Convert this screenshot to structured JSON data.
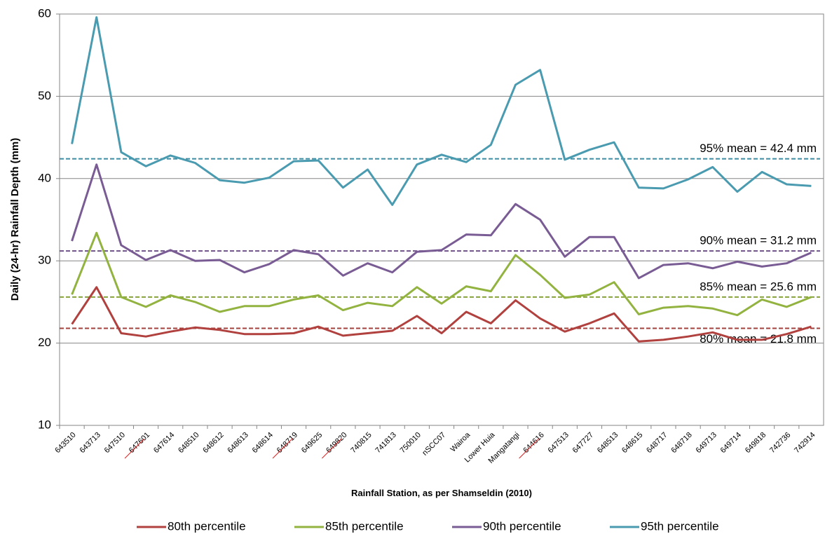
{
  "chart_data": {
    "type": "line",
    "y_label": "Daily (24-hr) Rainfall Depth (mm)",
    "x_label": "Rainfall Station, as per Shamseldin (2010)",
    "categories": [
      "643510",
      "643713",
      "647510",
      "647601",
      "647614",
      "648510",
      "648612",
      "648613",
      "648614",
      "648719",
      "649625",
      "649820",
      "740815",
      "741813",
      "750010",
      "nSCC07",
      "Wairoa",
      "Lower Huia",
      "Mangatangi",
      "644616",
      "647513",
      "647727",
      "648513",
      "648615",
      "648717",
      "648718",
      "649713",
      "649714",
      "649818",
      "742736",
      "742914"
    ],
    "struck_categories": [
      3,
      9,
      11,
      19
    ],
    "ylim": [
      10,
      60
    ],
    "yticks": [
      10,
      20,
      30,
      40,
      50,
      60
    ],
    "grid": true,
    "legend": "bottom",
    "series": [
      {
        "name": "80th percentile",
        "color": "#b0413e",
        "values": [
          22.3,
          26.8,
          21.2,
          20.8,
          21.4,
          21.9,
          21.6,
          21.1,
          21.1,
          21.2,
          22.0,
          20.9,
          21.2,
          21.5,
          23.3,
          21.2,
          23.8,
          22.4,
          25.2,
          23.0,
          21.4,
          22.4,
          23.6,
          20.2,
          20.4,
          20.8,
          21.3,
          20.4,
          20.4,
          21.1,
          22.0
        ]
      },
      {
        "name": "85th percentile",
        "color": "#93b341",
        "values": [
          25.9,
          33.4,
          25.6,
          24.4,
          25.8,
          25.0,
          23.8,
          24.5,
          24.5,
          25.3,
          25.8,
          24.0,
          24.9,
          24.5,
          26.8,
          24.8,
          26.9,
          26.3,
          30.7,
          28.3,
          25.5,
          25.9,
          27.4,
          23.5,
          24.3,
          24.5,
          24.2,
          23.4,
          25.3,
          24.4,
          25.6
        ]
      },
      {
        "name": "90th percentile",
        "color": "#7a5c94",
        "values": [
          32.4,
          41.7,
          31.9,
          30.1,
          31.3,
          30.0,
          30.1,
          28.6,
          29.6,
          31.3,
          30.8,
          28.2,
          29.7,
          28.6,
          31.1,
          31.3,
          33.2,
          33.1,
          36.9,
          35.0,
          30.5,
          32.9,
          32.9,
          27.9,
          29.5,
          29.7,
          29.1,
          29.9,
          29.3,
          29.7,
          31.0
        ]
      },
      {
        "name": "95th percentile",
        "color": "#4a9bb0",
        "values": [
          44.2,
          59.6,
          43.2,
          41.5,
          42.8,
          41.9,
          39.8,
          39.5,
          40.1,
          42.1,
          42.2,
          38.9,
          41.1,
          36.8,
          41.7,
          42.9,
          42.0,
          44.1,
          51.4,
          53.2,
          42.3,
          43.5,
          44.4,
          38.9,
          38.8,
          39.9,
          41.4,
          38.4,
          40.8,
          39.3,
          39.1
        ]
      }
    ],
    "mean_lines": [
      {
        "value": 21.8,
        "label": "80% mean = 21.8 mm",
        "color": "#a3413c"
      },
      {
        "value": 25.6,
        "label": "85% mean = 25.6 mm",
        "color": "#86a33a"
      },
      {
        "value": 31.2,
        "label": "90% mean = 31.2 mm",
        "color": "#6e5289"
      },
      {
        "value": 42.4,
        "label": "95% mean = 42.4 mm",
        "color": "#3c8ca3"
      }
    ]
  }
}
